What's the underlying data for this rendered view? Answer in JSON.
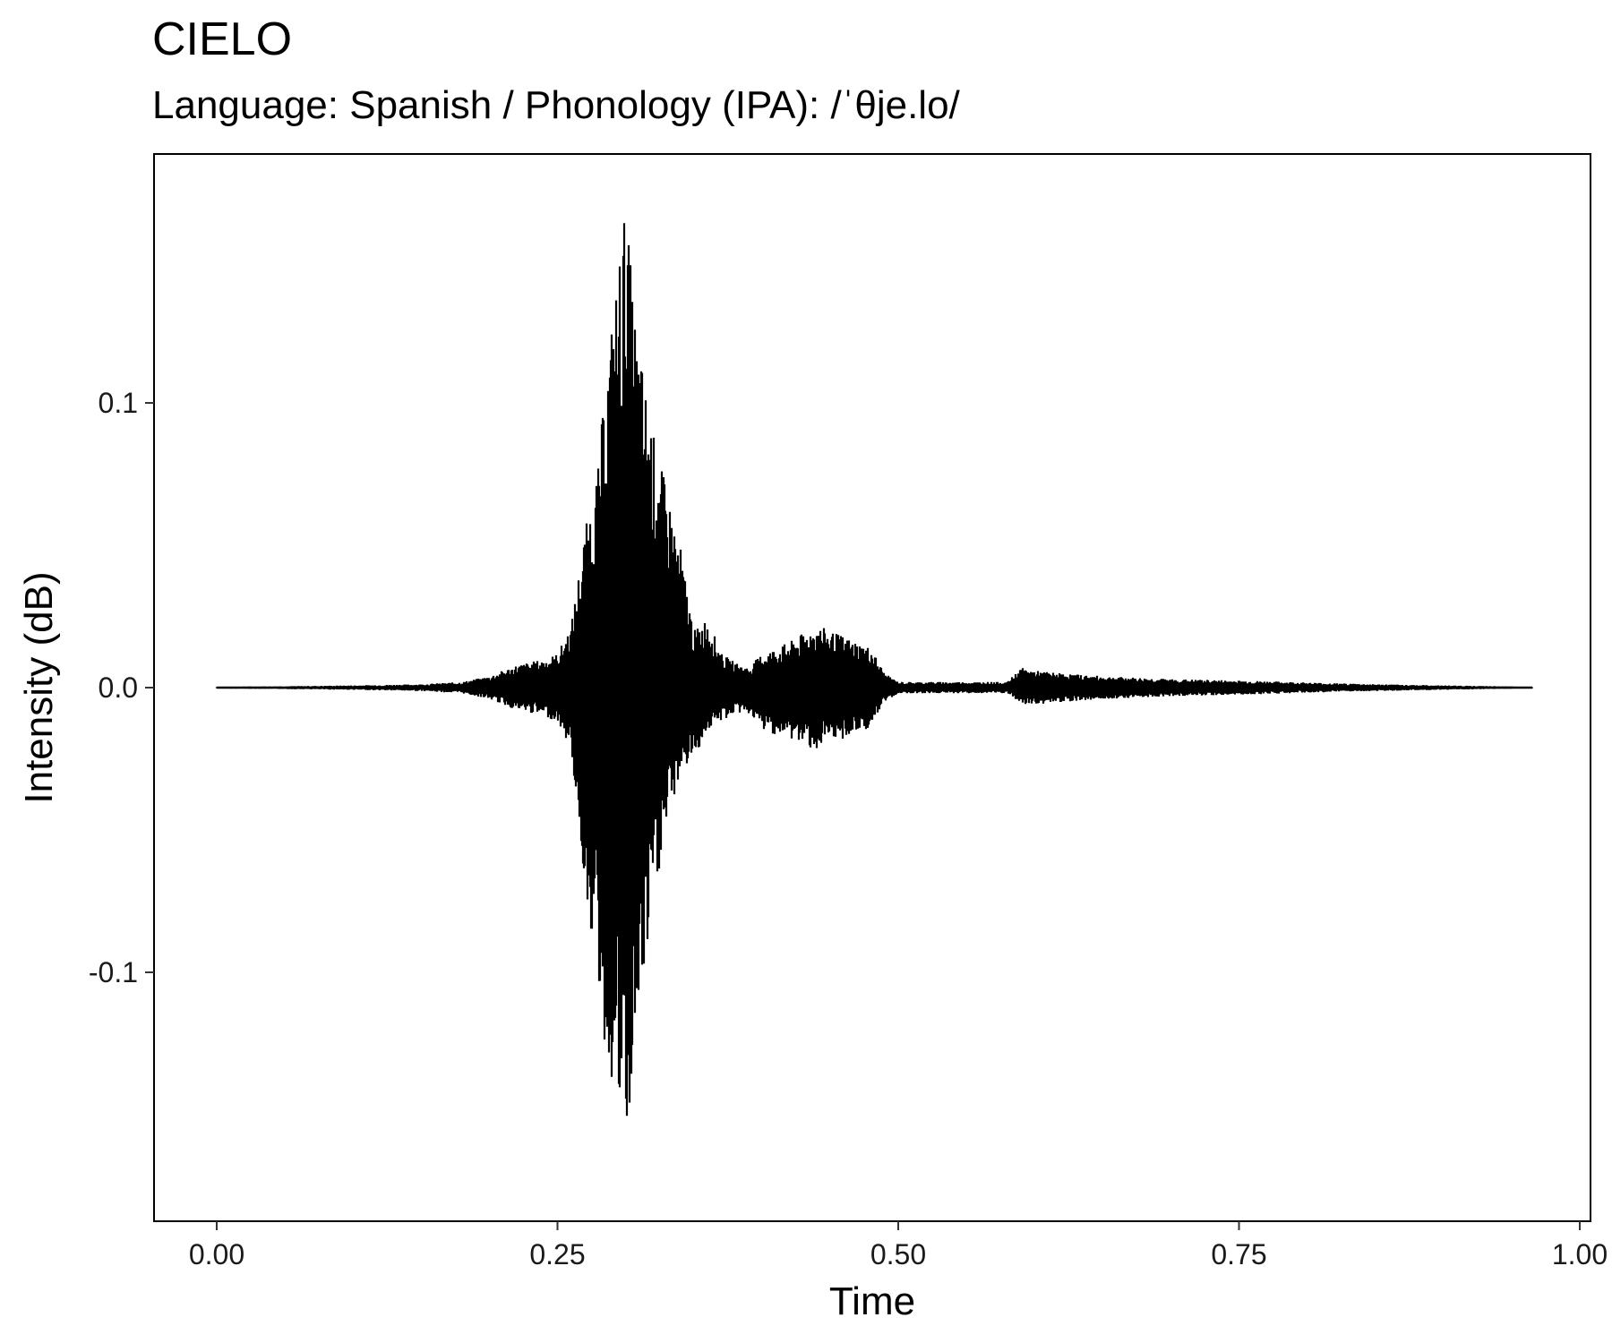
{
  "chart_data": {
    "type": "line",
    "title": "CIELO",
    "subtitle": "Language: Spanish / Phonology (IPA): /ˈθje.lo/",
    "xlabel": "Time",
    "ylabel": "Intensity (dB)",
    "xlim": [
      0,
      1
    ],
    "ylim": [
      -0.17,
      0.17
    ],
    "x_ticks": [
      {
        "value": 0,
        "label": "0.00"
      },
      {
        "value": 0.25,
        "label": "0.25"
      },
      {
        "value": 0.5,
        "label": "0.50"
      },
      {
        "value": 0.75,
        "label": "0.75"
      },
      {
        "value": 1,
        "label": "1.00"
      }
    ],
    "y_ticks": [
      {
        "value": -0.1,
        "label": "-0.1"
      },
      {
        "value": 0,
        "label": "0.0"
      },
      {
        "value": 0.1,
        "label": "0.1"
      }
    ],
    "grid": false,
    "line_color": "#000000",
    "series": [
      {
        "x": [
          0.0,
          0.05,
          0.1,
          0.15,
          0.18,
          0.2,
          0.21,
          0.22,
          0.23,
          0.24,
          0.25,
          0.26,
          0.27,
          0.28,
          0.285,
          0.29,
          0.295,
          0.3,
          0.305,
          0.31,
          0.315,
          0.32,
          0.33,
          0.34,
          0.35,
          0.36,
          0.37,
          0.38,
          0.39,
          0.4,
          0.42,
          0.44,
          0.45,
          0.46,
          0.47,
          0.48,
          0.49,
          0.5,
          0.52,
          0.54,
          0.56,
          0.58,
          0.59,
          0.6,
          0.62,
          0.65,
          0.7,
          0.75,
          0.8,
          0.85,
          0.9,
          0.95,
          0.965
        ],
        "y_max": [
          0.0003,
          0.0005,
          0.0008,
          0.0012,
          0.002,
          0.004,
          0.006,
          0.008,
          0.009,
          0.01,
          0.012,
          0.022,
          0.055,
          0.078,
          0.108,
          0.13,
          0.152,
          0.172,
          0.14,
          0.12,
          0.105,
          0.09,
          0.07,
          0.05,
          0.02,
          0.025,
          0.012,
          0.009,
          0.007,
          0.012,
          0.016,
          0.022,
          0.02,
          0.018,
          0.016,
          0.014,
          0.005,
          0.002,
          0.002,
          0.002,
          0.002,
          0.002,
          0.007,
          0.006,
          0.005,
          0.004,
          0.003,
          0.0025,
          0.0018,
          0.0012,
          0.0008,
          0.0004,
          0.0002
        ],
        "y_min": [
          -0.0003,
          -0.0005,
          -0.0008,
          -0.0012,
          -0.002,
          -0.004,
          -0.006,
          -0.008,
          -0.009,
          -0.01,
          -0.012,
          -0.022,
          -0.07,
          -0.105,
          -0.13,
          -0.14,
          -0.152,
          -0.17,
          -0.14,
          -0.115,
          -0.1,
          -0.078,
          -0.05,
          -0.03,
          -0.025,
          -0.015,
          -0.012,
          -0.009,
          -0.009,
          -0.015,
          -0.018,
          -0.022,
          -0.02,
          -0.018,
          -0.016,
          -0.014,
          -0.005,
          -0.002,
          -0.002,
          -0.002,
          -0.002,
          -0.002,
          -0.006,
          -0.006,
          -0.005,
          -0.004,
          -0.003,
          -0.0025,
          -0.0018,
          -0.0012,
          -0.0008,
          -0.0004,
          -0.0002
        ]
      }
    ]
  }
}
